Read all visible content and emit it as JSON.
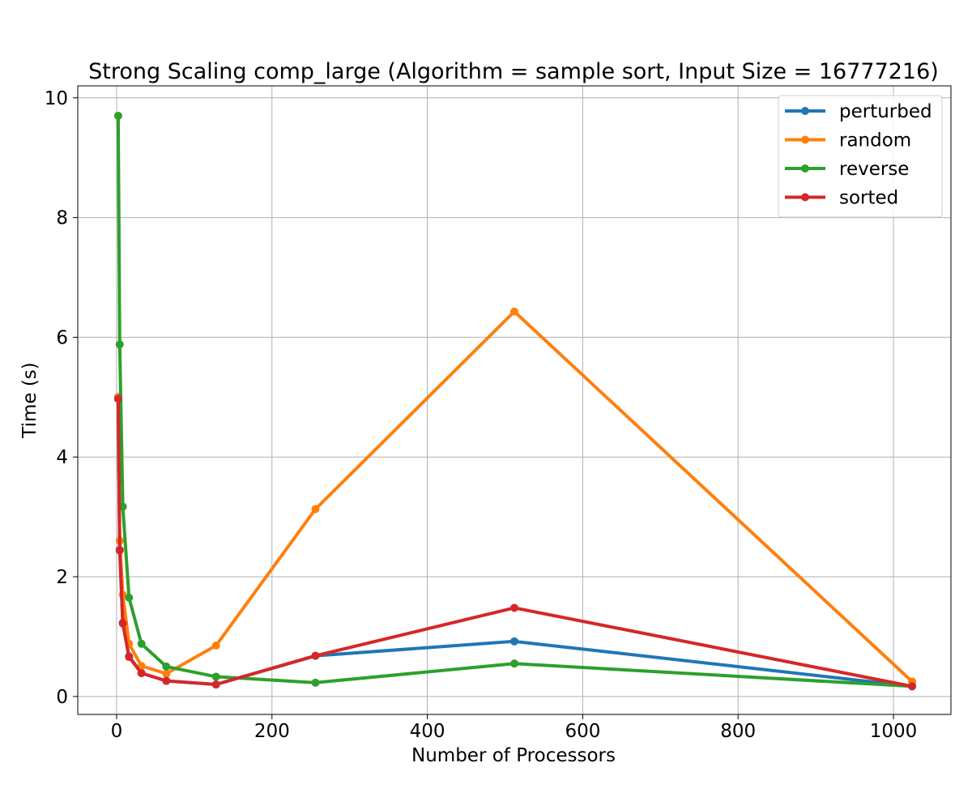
{
  "chart_data": {
    "type": "line",
    "title": "Strong Scaling comp_large (Algorithm = sample sort, Input Size = 16777216)",
    "xlabel": "Number of Processors",
    "ylabel": "Time (s)",
    "xlim": [
      -50,
      1074
    ],
    "ylim": [
      -0.3,
      10.2
    ],
    "xticks": [
      0,
      200,
      400,
      600,
      800,
      1000
    ],
    "yticks": [
      0,
      2,
      4,
      6,
      8,
      10
    ],
    "grid": true,
    "legend_position": "top-right",
    "x": [
      2,
      4,
      8,
      16,
      32,
      64,
      128,
      256,
      512,
      1024
    ],
    "series": [
      {
        "name": "perturbed",
        "color": "#1f77b4",
        "values": [
          5.0,
          2.45,
          1.23,
          0.67,
          0.39,
          0.26,
          0.2,
          0.68,
          0.92,
          0.17
        ]
      },
      {
        "name": "random",
        "color": "#ff7f0e",
        "values": [
          5.0,
          2.6,
          1.7,
          0.88,
          0.51,
          0.38,
          0.85,
          3.13,
          6.43,
          0.25
        ]
      },
      {
        "name": "reverse",
        "color": "#2ca02c",
        "values": [
          9.7,
          5.88,
          3.17,
          1.65,
          0.88,
          0.5,
          0.33,
          0.23,
          0.55,
          0.17
        ]
      },
      {
        "name": "sorted",
        "color": "#d62728",
        "values": [
          4.97,
          2.44,
          1.22,
          0.66,
          0.39,
          0.26,
          0.2,
          0.68,
          1.48,
          0.17
        ]
      }
    ]
  }
}
